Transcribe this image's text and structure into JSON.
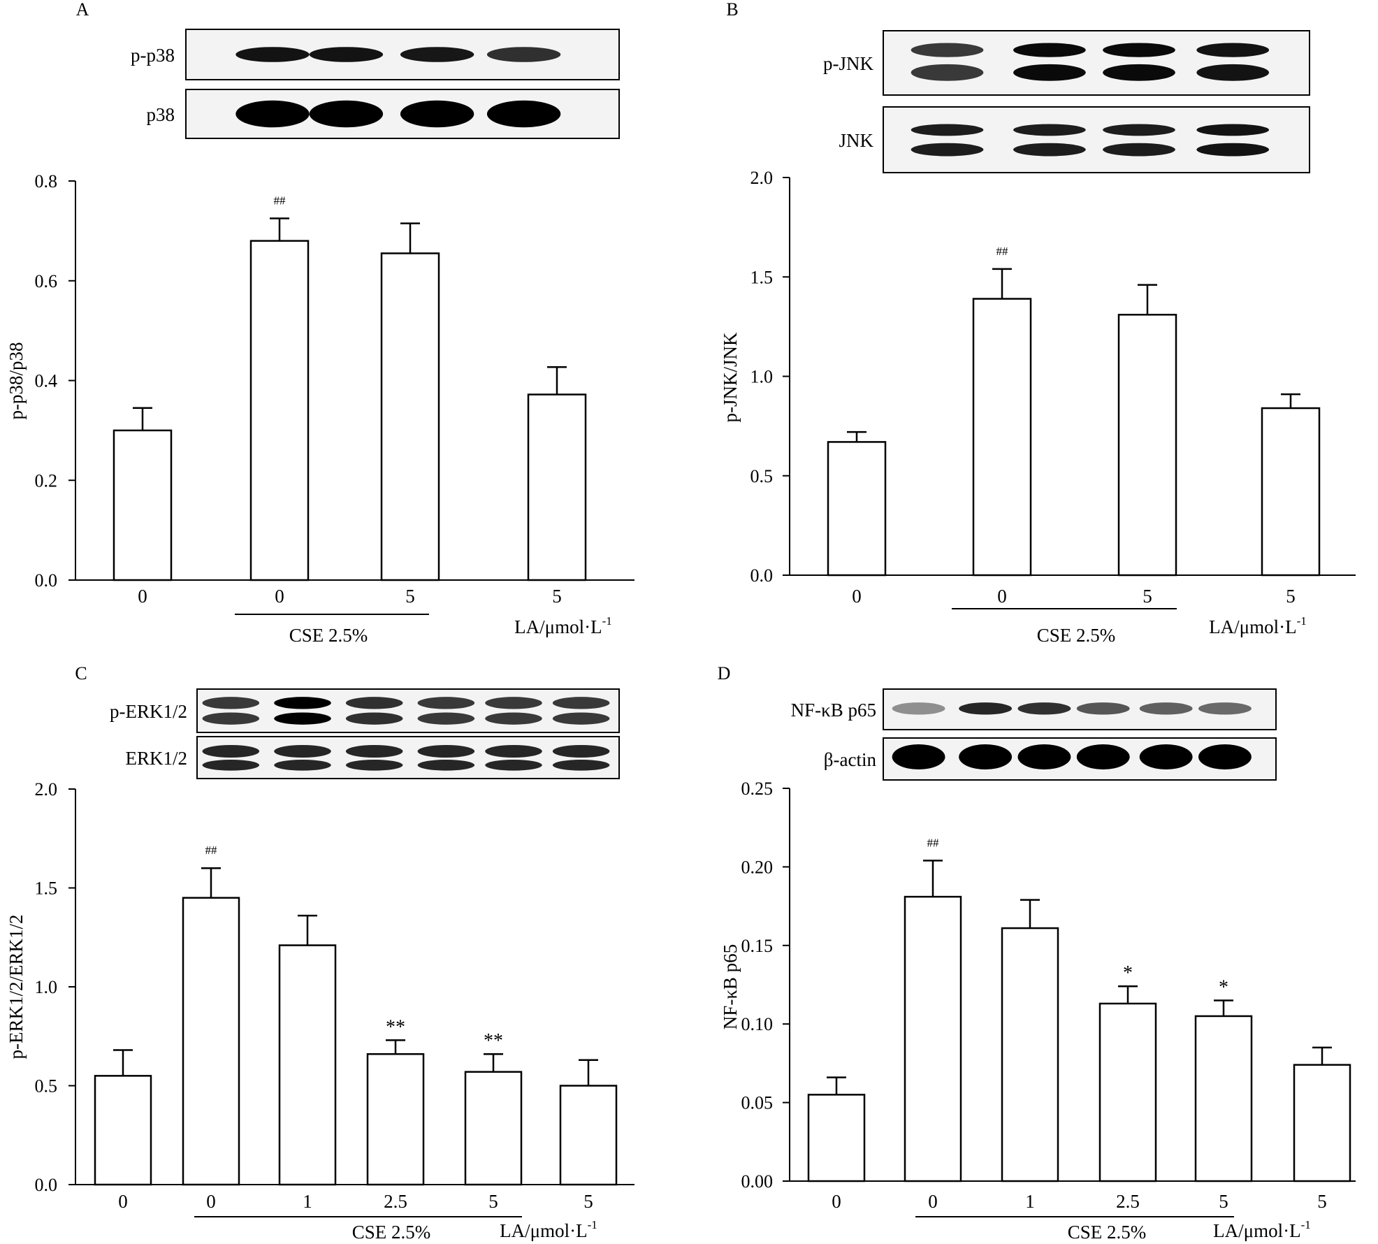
{
  "chart_data": [
    {
      "panel": "A",
      "type": "bar",
      "ylabel": "p-p38/p38",
      "ylim": [
        0,
        0.8
      ],
      "yticks": [
        0.0,
        0.2,
        0.4,
        0.6,
        0.8
      ],
      "ytick_labels": [
        "0.0",
        "0.2",
        "0.4",
        "0.6",
        "0.8"
      ],
      "categories": [
        "0",
        "0",
        "5",
        "5"
      ],
      "values": [
        0.3,
        0.68,
        0.655,
        0.372
      ],
      "errors": [
        0.045,
        0.045,
        0.06,
        0.055
      ],
      "annotations": [
        "",
        "##",
        "",
        ""
      ],
      "group_label": "CSE 2.5%",
      "group_span": [
        1,
        2
      ],
      "x_unit_label": "LA/μmol·L",
      "x_unit_exponent": "-1",
      "blot_labels": [
        "p-p38",
        "p38"
      ]
    },
    {
      "panel": "B",
      "type": "bar",
      "ylabel": "p-JNK/JNK",
      "ylim": [
        0,
        2.0
      ],
      "yticks": [
        0.0,
        0.5,
        1.0,
        1.5,
        2.0
      ],
      "ytick_labels": [
        "0.0",
        "0.5",
        "1.0",
        "1.5",
        "2.0"
      ],
      "categories": [
        "0",
        "0",
        "5",
        "5"
      ],
      "values": [
        0.67,
        1.39,
        1.31,
        0.84
      ],
      "errors": [
        0.05,
        0.15,
        0.15,
        0.07
      ],
      "annotations": [
        "",
        "##",
        "",
        ""
      ],
      "group_label": "CSE 2.5%",
      "group_span": [
        1,
        2
      ],
      "x_unit_label": "LA/μmol·L",
      "x_unit_exponent": "-1",
      "blot_labels": [
        "p-JNK",
        "JNK"
      ]
    },
    {
      "panel": "C",
      "type": "bar",
      "ylabel": "p-ERK1/2/ERK1/2",
      "ylim": [
        0,
        2.0
      ],
      "yticks": [
        0.0,
        0.5,
        1.0,
        1.5,
        2.0
      ],
      "ytick_labels": [
        "0.0",
        "0.5",
        "1.0",
        "1.5",
        "2.0"
      ],
      "categories": [
        "0",
        "0",
        "1",
        "2.5",
        "5",
        "5"
      ],
      "values": [
        0.55,
        1.45,
        1.21,
        0.66,
        0.57,
        0.5
      ],
      "errors": [
        0.13,
        0.15,
        0.15,
        0.07,
        0.09,
        0.13
      ],
      "annotations": [
        "",
        "##",
        "",
        "**",
        "**",
        ""
      ],
      "group_label": "CSE 2.5%",
      "group_span": [
        1,
        4
      ],
      "x_unit_label": "LA/μmol·L",
      "x_unit_exponent": "-1",
      "blot_labels": [
        "p-ERK1/2",
        "ERK1/2"
      ]
    },
    {
      "panel": "D",
      "type": "bar",
      "ylabel": "NF-κB p65",
      "ylim": [
        0,
        0.25
      ],
      "yticks": [
        0.0,
        0.05,
        0.1,
        0.15,
        0.2,
        0.25
      ],
      "ytick_labels": [
        "0.00",
        "0.05",
        "0.10",
        "0.15",
        "0.20",
        "0.25"
      ],
      "categories": [
        "0",
        "0",
        "1",
        "2.5",
        "5",
        "5"
      ],
      "values": [
        0.055,
        0.181,
        0.161,
        0.113,
        0.105,
        0.074
      ],
      "errors": [
        0.011,
        0.023,
        0.018,
        0.011,
        0.01,
        0.011
      ],
      "annotations": [
        "",
        "##",
        "",
        "*",
        "*",
        ""
      ],
      "group_label": "CSE 2.5%",
      "group_span": [
        1,
        4
      ],
      "x_unit_label": "LA/μmol·L",
      "x_unit_exponent": "-1",
      "blot_labels": [
        "NF-κB p65",
        "β-actin"
      ]
    }
  ]
}
